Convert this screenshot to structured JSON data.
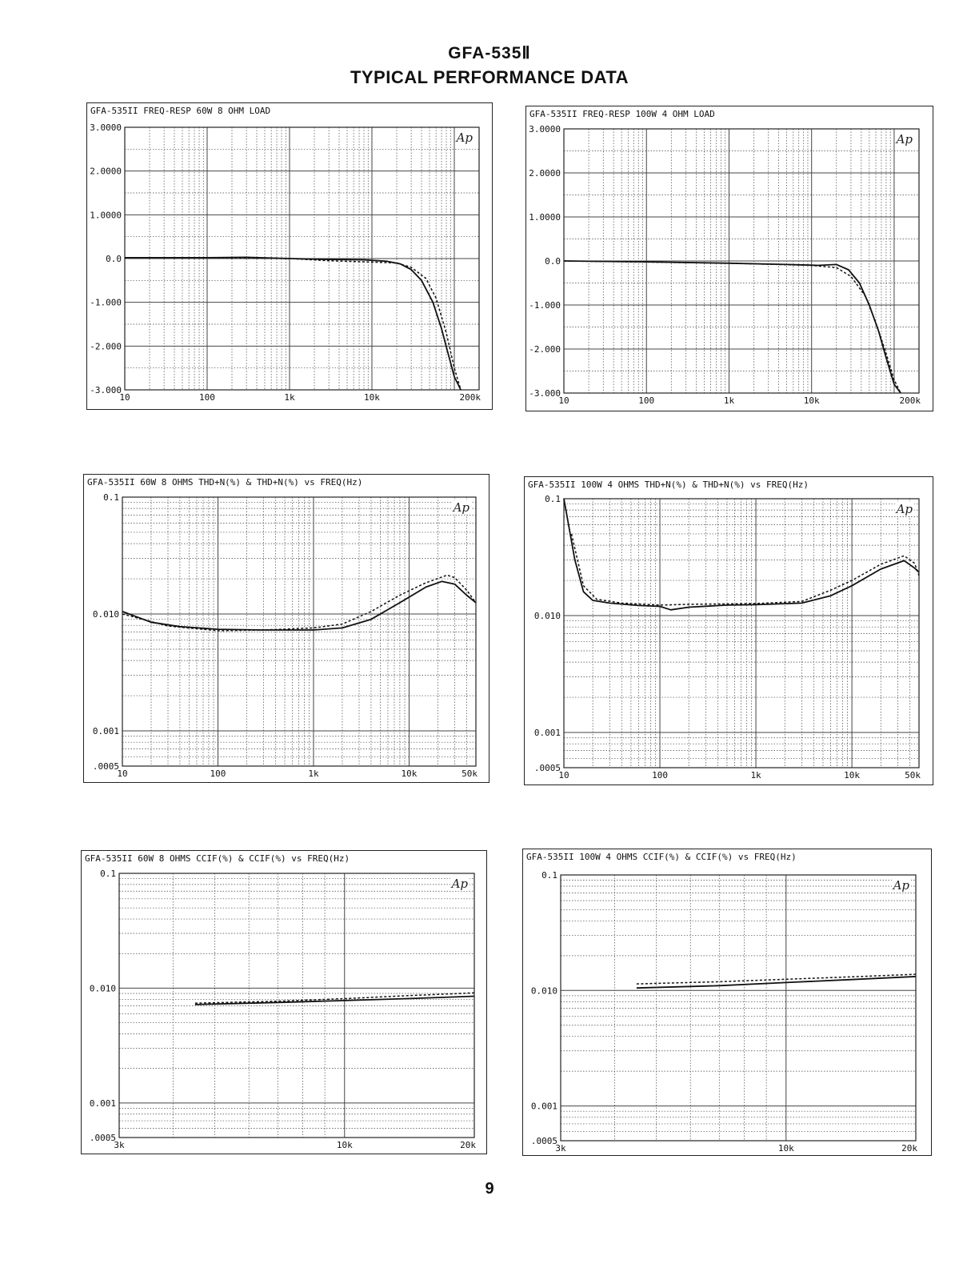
{
  "header": {
    "model": "GFA-535Ⅱ",
    "subtitle": "TYPICAL PERFORMANCE DATA"
  },
  "page_number": "9",
  "chart_data": [
    {
      "type": "line",
      "header": {
        "id": "GFA-535II",
        "measure": "FREQ-RESP",
        "condition": "60W 8 OHM LOAD"
      },
      "badge": "Ap",
      "xscale": "log",
      "xlim": [
        10,
        200000
      ],
      "xticks": [
        10,
        100,
        1000,
        10000,
        200000
      ],
      "xtick_labels": [
        "10",
        "100",
        "1k",
        "10k",
        "200k"
      ],
      "yscale": "linear",
      "ylim": [
        -3,
        3
      ],
      "yticks": [
        3,
        2,
        1,
        0,
        -1,
        -2,
        -3
      ],
      "ytick_labels": [
        "3.0000",
        "2.0000",
        "1.0000",
        "0.0",
        "-1.000",
        "-2.000",
        "-3.000"
      ],
      "series": [
        {
          "name": "solid",
          "style": "solid",
          "x": [
            10,
            30,
            100,
            300,
            1000,
            3000,
            8000,
            15000,
            22000,
            30000,
            40000,
            55000,
            70000,
            85000,
            100000,
            120000
          ],
          "y": [
            0.02,
            0.02,
            0.02,
            0.03,
            0.0,
            -0.02,
            -0.03,
            -0.06,
            -0.12,
            -0.25,
            -0.5,
            -1.0,
            -1.6,
            -2.2,
            -2.7,
            -3.0
          ]
        },
        {
          "name": "dashed",
          "style": "dashed",
          "x": [
            10,
            100,
            1000,
            3000,
            10000,
            20000,
            30000,
            45000,
            60000,
            80000,
            100000,
            120000
          ],
          "y": [
            0.02,
            0.02,
            0.0,
            -0.05,
            -0.08,
            -0.1,
            -0.2,
            -0.45,
            -0.9,
            -1.7,
            -2.5,
            -3.0
          ]
        }
      ]
    },
    {
      "type": "line",
      "header": {
        "id": "GFA-535II",
        "measure": "FREQ-RESP",
        "condition": "100W 4 OHM LOAD"
      },
      "badge": "Ap",
      "xscale": "log",
      "xlim": [
        10,
        200000
      ],
      "xticks": [
        10,
        100,
        1000,
        10000,
        200000
      ],
      "xtick_labels": [
        "10",
        "100",
        "1k",
        "10k",
        "200k"
      ],
      "yscale": "linear",
      "ylim": [
        -3,
        3
      ],
      "yticks": [
        3,
        2,
        1,
        0,
        -1,
        -2,
        -3
      ],
      "ytick_labels": [
        "3.0000",
        "2.0000",
        "1.0000",
        "0.0",
        "-1.000",
        "-2.000",
        "-3.000"
      ],
      "series": [
        {
          "name": "solid",
          "style": "solid",
          "x": [
            10,
            100,
            1000,
            5000,
            12000,
            20000,
            28000,
            38000,
            50000,
            65000,
            80000,
            100000,
            120000
          ],
          "y": [
            0.0,
            -0.02,
            -0.05,
            -0.08,
            -0.1,
            -0.08,
            -0.2,
            -0.5,
            -1.0,
            -1.6,
            -2.2,
            -2.8,
            -3.0
          ]
        },
        {
          "name": "dashed",
          "style": "dashed",
          "x": [
            10,
            1000,
            10000,
            20000,
            30000,
            45000,
            60000,
            80000,
            100000,
            120000
          ],
          "y": [
            0.0,
            -0.05,
            -0.1,
            -0.15,
            -0.35,
            -0.8,
            -1.4,
            -2.1,
            -2.7,
            -3.0
          ]
        }
      ]
    },
    {
      "type": "line",
      "header": {
        "id": "GFA-535II",
        "measure": "60W 8 OHMS THD+N(%) & THD+N(%) vs FREQ(Hz)",
        "condition": ""
      },
      "badge": "Ap",
      "xscale": "log",
      "xlim": [
        10,
        50000
      ],
      "xticks": [
        10,
        100,
        1000,
        10000,
        50000
      ],
      "xtick_labels": [
        "10",
        "100",
        "1k",
        "10k",
        "50k"
      ],
      "yscale": "log",
      "ylim": [
        0.0005,
        0.1
      ],
      "yticks": [
        0.1,
        0.01,
        0.001,
        0.0005
      ],
      "ytick_labels": [
        "0.1",
        "0.010",
        "0.001",
        ".0005"
      ],
      "series": [
        {
          "name": "solid",
          "style": "solid",
          "x": [
            10,
            20,
            40,
            100,
            300,
            1000,
            2000,
            4000,
            8000,
            15000,
            22000,
            30000,
            40000,
            50000
          ],
          "y": [
            0.0105,
            0.0085,
            0.0078,
            0.0074,
            0.0073,
            0.0073,
            0.0076,
            0.009,
            0.0125,
            0.017,
            0.019,
            0.018,
            0.0145,
            0.0125
          ]
        },
        {
          "name": "dashed",
          "style": "dashed",
          "x": [
            10,
            30,
            100,
            300,
            1000,
            2000,
            4000,
            8000,
            15000,
            25000,
            30000,
            40000,
            50000
          ],
          "y": [
            0.01,
            0.0079,
            0.0072,
            0.0073,
            0.0076,
            0.0082,
            0.0105,
            0.0145,
            0.0185,
            0.0215,
            0.0205,
            0.016,
            0.0125
          ]
        }
      ]
    },
    {
      "type": "line",
      "header": {
        "id": "GFA-535II",
        "measure": "100W 4 OHMS THD+N(%) & THD+N(%) vs FREQ(Hz)",
        "condition": ""
      },
      "badge": "Ap",
      "xscale": "log",
      "xlim": [
        10,
        50000
      ],
      "xticks": [
        10,
        100,
        1000,
        10000,
        50000
      ],
      "xtick_labels": [
        "10",
        "100",
        "1k",
        "10k",
        "50k"
      ],
      "yscale": "log",
      "ylim": [
        0.0005,
        0.1
      ],
      "yticks": [
        0.1,
        0.01,
        0.001,
        0.0005
      ],
      "ytick_labels": [
        "0.1",
        "0.010",
        "0.001",
        ".0005"
      ],
      "series": [
        {
          "name": "solid",
          "style": "solid",
          "x": [
            10,
            13,
            16,
            20,
            30,
            60,
            100,
            130,
            200,
            500,
            1000,
            3000,
            6000,
            10000,
            20000,
            35000,
            45000,
            50000
          ],
          "y": [
            0.1,
            0.03,
            0.016,
            0.0135,
            0.0128,
            0.0122,
            0.012,
            0.0112,
            0.0118,
            0.0123,
            0.0124,
            0.0128,
            0.0148,
            0.018,
            0.025,
            0.0295,
            0.0255,
            0.0235
          ]
        },
        {
          "name": "dashed",
          "style": "dashed",
          "x": [
            12,
            16,
            22,
            40,
            100,
            200,
            500,
            1000,
            3000,
            6000,
            10000,
            20000,
            35000,
            45000,
            50000
          ],
          "y": [
            0.05,
            0.018,
            0.0138,
            0.0128,
            0.0123,
            0.0125,
            0.0126,
            0.0127,
            0.0132,
            0.0165,
            0.02,
            0.0275,
            0.0325,
            0.028,
            0.022
          ]
        }
      ]
    },
    {
      "type": "line",
      "header": {
        "id": "GFA-535II",
        "measure": "60W 8 OHMS  CCIF(%) & CCIF(%) vs FREQ(Hz)",
        "condition": ""
      },
      "badge": "Ap",
      "xscale": "log",
      "xlim": [
        3000,
        20000
      ],
      "xticks": [
        3000,
        10000,
        20000
      ],
      "xtick_labels": [
        "3k",
        "10k",
        "20k"
      ],
      "yscale": "log",
      "ylim": [
        0.0005,
        0.1
      ],
      "yticks": [
        0.1,
        0.01,
        0.001,
        0.0005
      ],
      "ytick_labels": [
        "0.1",
        "0.010",
        "0.001",
        ".0005"
      ],
      "series": [
        {
          "name": "solid",
          "style": "solid",
          "x": [
            4500,
            7000,
            10000,
            14000,
            20000
          ],
          "y": [
            0.0072,
            0.0075,
            0.0078,
            0.0081,
            0.0085
          ]
        },
        {
          "name": "dashed",
          "style": "dashed",
          "x": [
            4500,
            7000,
            10000,
            14000,
            20000
          ],
          "y": [
            0.0074,
            0.0077,
            0.0081,
            0.0086,
            0.0091
          ]
        }
      ]
    },
    {
      "type": "line",
      "header": {
        "id": "GFA-535II",
        "measure": "100W 4 OHMS  CCIF(%) & CCIF(%) vs FREQ(Hz)",
        "condition": ""
      },
      "badge": "Ap",
      "xscale": "log",
      "xlim": [
        3000,
        20000
      ],
      "xticks": [
        3000,
        10000,
        20000
      ],
      "xtick_labels": [
        "3k",
        "10k",
        "20k"
      ],
      "yscale": "log",
      "ylim": [
        0.0005,
        0.1
      ],
      "yticks": [
        0.1,
        0.01,
        0.001,
        0.0005
      ],
      "ytick_labels": [
        "0.1",
        "0.010",
        "0.001",
        ".0005"
      ],
      "series": [
        {
          "name": "solid",
          "style": "solid",
          "x": [
            4500,
            7000,
            10000,
            14000,
            20000
          ],
          "y": [
            0.0105,
            0.011,
            0.0117,
            0.0124,
            0.0132
          ]
        },
        {
          "name": "dashed",
          "style": "dashed",
          "x": [
            4500,
            7000,
            10000,
            14000,
            20000
          ],
          "y": [
            0.0114,
            0.0119,
            0.0125,
            0.0131,
            0.0138
          ]
        }
      ]
    }
  ]
}
